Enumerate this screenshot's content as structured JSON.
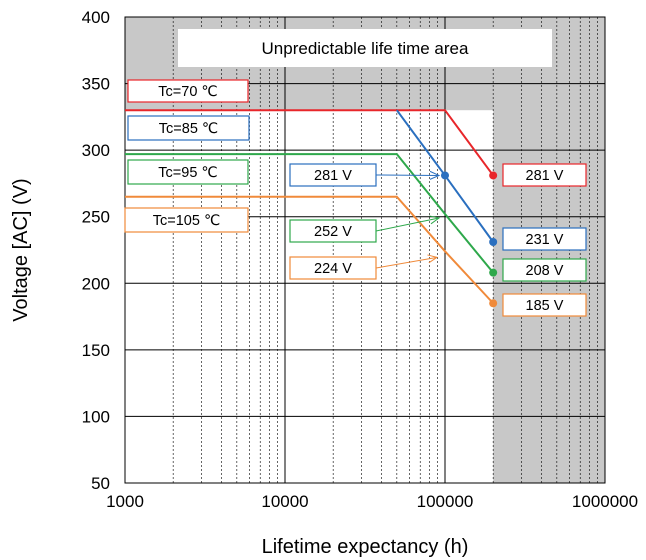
{
  "chart_data": {
    "type": "line",
    "title": "",
    "xlabel": "Lifetime expectancy (h)",
    "ylabel": "Voltage [AC] (V)",
    "xscale": "log",
    "xlim": [
      1000,
      1000000
    ],
    "ylim": [
      50,
      400
    ],
    "x_ticks": [
      "1000",
      "10000",
      "100000",
      "1000000"
    ],
    "y_ticks": [
      "50",
      "100",
      "150",
      "200",
      "250",
      "300",
      "350",
      "400"
    ],
    "grid": true,
    "unpredictable_area": {
      "label": "Unpredictable life time area",
      "region_top_voltage_min": 330,
      "region_right_lifetime_min": 200000,
      "color": "#c8c8c8"
    },
    "series": [
      {
        "name": "Tc=70 ℃",
        "color": "#e8262a",
        "x": [
          1000,
          100000,
          200000
        ],
        "y": [
          330,
          330,
          281
        ],
        "end_label": "281 V"
      },
      {
        "name": "Tc=85 ℃",
        "color": "#2a6fbf",
        "x": [
          50000,
          100000,
          200000
        ],
        "y": [
          330,
          281,
          231
        ],
        "end_label": "231 V"
      },
      {
        "name": "Tc=95 ℃",
        "color": "#2ea84b",
        "x": [
          1000,
          50000,
          100000,
          200000
        ],
        "y": [
          297,
          297,
          252,
          208
        ],
        "end_label": "208 V"
      },
      {
        "name": "Tc=105 ℃",
        "color": "#f08a3a",
        "x": [
          1000,
          50000,
          100000,
          200000
        ],
        "y": [
          265,
          265,
          224,
          185
        ],
        "end_label": "185 V"
      }
    ],
    "markers": [
      {
        "series": 0,
        "x": 200000,
        "y": 281
      },
      {
        "series": 1,
        "x": 100000,
        "y": 281
      },
      {
        "series": 1,
        "x": 200000,
        "y": 231
      },
      {
        "series": 2,
        "x": 200000,
        "y": 208
      },
      {
        "series": 3,
        "x": 200000,
        "y": 185
      }
    ],
    "callouts": [
      {
        "label": "281 V",
        "color": "#2a6fbf",
        "x": 100000,
        "y": 281
      },
      {
        "label": "252 V",
        "color": "#2ea84b",
        "x": 100000,
        "y": 252
      },
      {
        "label": "224 V",
        "color": "#f08a3a",
        "x": 100000,
        "y": 224
      }
    ]
  }
}
